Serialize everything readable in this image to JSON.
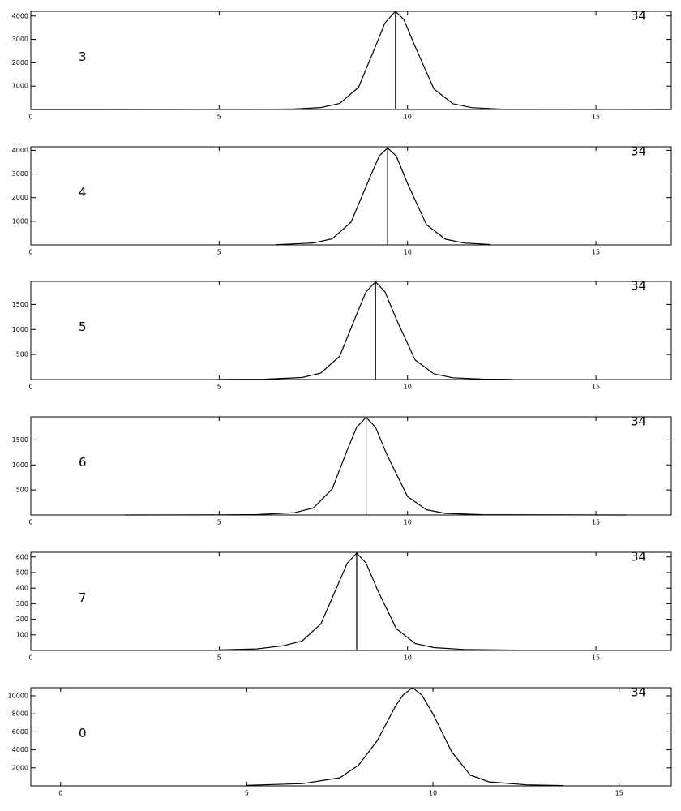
{
  "chart_data": [
    {
      "type": "line",
      "annotations": [
        "3",
        "34"
      ],
      "color": "#000000",
      "marker_x": 9.68,
      "x": [
        0,
        6,
        7,
        7.7,
        8.2,
        8.7,
        9.2,
        9.4,
        9.68,
        9.9,
        10.2,
        10.7,
        11.2,
        11.7,
        12.5,
        14,
        17
      ],
      "values": [
        0,
        5,
        25,
        84,
        260,
        950,
        2900,
        3700,
        4200,
        3850,
        2700,
        880,
        250,
        80,
        15,
        3,
        0
      ],
      "xlim": [
        0,
        17
      ],
      "xticks": [
        0,
        5,
        10,
        15
      ],
      "ylim": [
        0,
        4200
      ],
      "yticks": [
        1000,
        2000,
        3000,
        4000
      ]
    },
    {
      "type": "line",
      "annotations": [
        "4",
        "34"
      ],
      "color": "#000000",
      "marker_x": 9.47,
      "x": [
        6.5,
        7.5,
        8,
        8.5,
        9,
        9.25,
        9.47,
        9.7,
        10,
        10.5,
        11,
        11.5,
        12.2
      ],
      "values": [
        12,
        82,
        260,
        960,
        2850,
        3770,
        4100,
        3760,
        2600,
        860,
        245,
        78,
        18
      ],
      "xlim": [
        0,
        17
      ],
      "xticks": [
        0,
        5,
        10,
        15
      ],
      "ylim": [
        0,
        4150
      ],
      "yticks": [
        1000,
        2000,
        3000,
        4000
      ]
    },
    {
      "type": "line",
      "annotations": [
        "5",
        "34"
      ],
      "color": "#000000",
      "marker_x": 9.15,
      "x": [
        5,
        6.2,
        7.2,
        7.7,
        8.2,
        8.65,
        8.9,
        9.15,
        9.4,
        9.7,
        10.2,
        10.7,
        11.2,
        12,
        12.8
      ],
      "values": [
        2,
        6,
        41,
        129,
        468,
        1307,
        1755,
        1950,
        1755,
        1209,
        390,
        113,
        35,
        8,
        2
      ],
      "xlim": [
        0,
        17
      ],
      "xticks": [
        0,
        5,
        10,
        15
      ],
      "ylim": [
        0,
        1960
      ],
      "yticks": [
        500,
        1000,
        1500
      ]
    },
    {
      "type": "line",
      "annotations": [
        "6",
        "34"
      ],
      "color": "#000000",
      "marker_x": 8.9,
      "x": [
        2.5,
        5,
        6,
        7,
        7.5,
        8,
        8.4,
        8.65,
        8.9,
        9.15,
        9.45,
        10,
        10.5,
        11,
        12,
        15.8
      ],
      "values": [
        0,
        3,
        8,
        45,
        140,
        520,
        1300,
        1755,
        1950,
        1755,
        1210,
        370,
        105,
        33,
        6,
        0
      ],
      "xlim": [
        0,
        17
      ],
      "xticks": [
        0,
        5,
        10,
        15
      ],
      "ylim": [
        0,
        1960
      ],
      "yticks": [
        500,
        1000,
        1500
      ]
    },
    {
      "type": "line",
      "annotations": [
        "7",
        "34"
      ],
      "color": "#000000",
      "marker_x": 8.65,
      "x": [
        5,
        6,
        6.7,
        7.2,
        7.7,
        8.15,
        8.4,
        8.65,
        8.9,
        9.2,
        9.7,
        10.2,
        10.7,
        11.5,
        12.9
      ],
      "values": [
        3,
        10,
        30,
        60,
        170,
        420,
        560,
        625,
        560,
        390,
        140,
        45,
        18,
        6,
        2
      ],
      "xlim": [
        0,
        17
      ],
      "xticks": [
        0,
        5,
        10,
        15
      ],
      "ylim": [
        0,
        630
      ],
      "yticks": [
        100,
        200,
        300,
        400,
        500,
        600
      ]
    },
    {
      "type": "line",
      "annotations": [
        "0",
        "34"
      ],
      "color": "#000000",
      "x": [
        5,
        6.5,
        7.5,
        8,
        8.5,
        9,
        9.2,
        9.45,
        9.7,
        10,
        10.5,
        11,
        11.5,
        12.5,
        13.5
      ],
      "values": [
        60,
        250,
        900,
        2300,
        5000,
        8900,
        10100,
        10900,
        10100,
        8000,
        3800,
        1200,
        450,
        120,
        40
      ],
      "xlim": [
        -0.8,
        16.4
      ],
      "xticks": [
        0,
        5,
        10,
        15
      ],
      "ylim": [
        0,
        10900
      ],
      "yticks": [
        2000,
        4000,
        6000,
        8000,
        10000
      ]
    }
  ]
}
